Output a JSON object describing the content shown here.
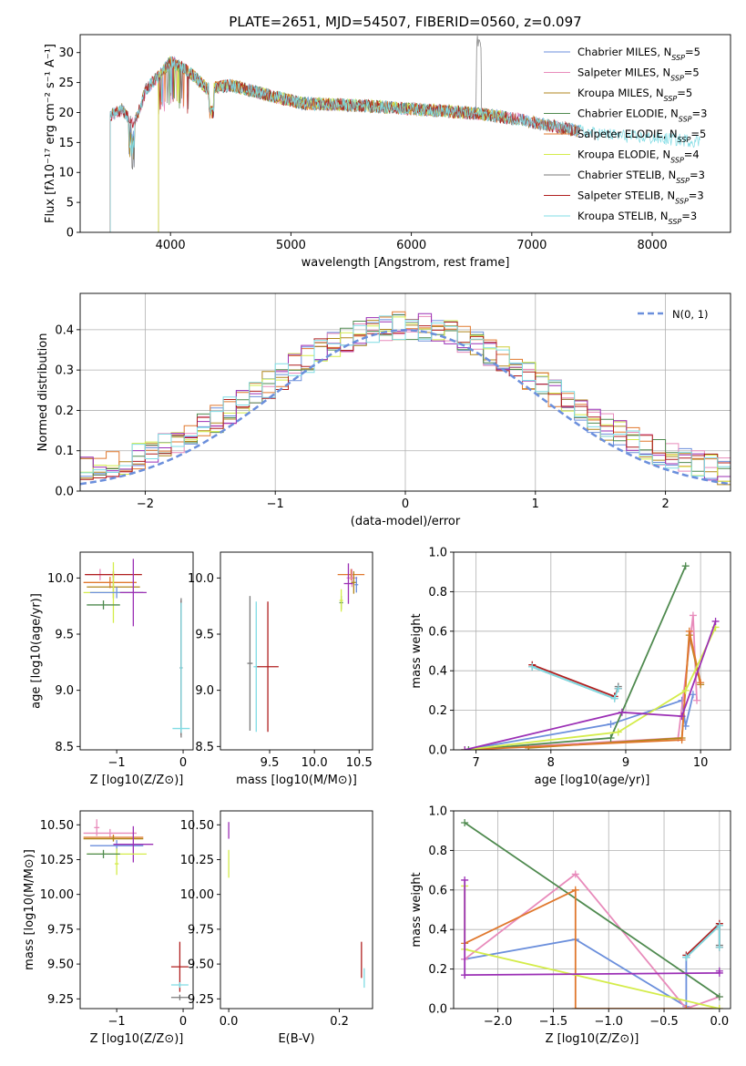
{
  "chart_data": [
    {
      "type": "line",
      "title": "PLATE=2651, MJD=54507, FIBERID=0560, z=0.097",
      "xlabel": "wavelength [Angstrom, rest frame]",
      "ylabel": "Flux [fλ10⁻¹⁷ erg cm⁻² s⁻¹ A⁻¹]",
      "xlim": [
        3250,
        8650
      ],
      "ylim": [
        0,
        33
      ],
      "xticks": [
        4000,
        5000,
        6000,
        7000,
        8000
      ],
      "yticks": [
        0,
        5,
        10,
        15,
        20,
        25,
        30
      ],
      "legend": "top-right",
      "shape_x": [
        3500,
        3600,
        3700,
        3800,
        3900,
        4000,
        4100,
        4200,
        4300,
        4500,
        4700,
        4900,
        5100,
        5400,
        5700,
        6000,
        6300,
        6600,
        6900,
        7200,
        7500,
        7800,
        8100,
        8400
      ],
      "shape_y": [
        19.5,
        20.5,
        18,
        24,
        26,
        28.5,
        27.5,
        26,
        24,
        24.5,
        23.5,
        22.5,
        21.5,
        21.3,
        21,
        20.6,
        20.2,
        19.7,
        18.8,
        17.6,
        16.6,
        16,
        15.6,
        15.2
      ],
      "series": [
        {
          "name": "Chabrier MILES, N_SSP=5",
          "color": "#6b8fdc",
          "range": [
            3500,
            7400
          ]
        },
        {
          "name": "Salpeter MILES, N_SSP=5",
          "color": "#e88bbb",
          "range": [
            3500,
            7400
          ]
        },
        {
          "name": "Kroupa MILES, N_SSP=5",
          "color": "#b0861c",
          "range": [
            3500,
            7400
          ]
        },
        {
          "name": "Chabrier ELODIE, N_SSP=3",
          "color": "#4f8a4f",
          "range": [
            3900,
            6800
          ]
        },
        {
          "name": "Salpeter ELODIE, N_SSP=5",
          "color": "#e0782d",
          "range": [
            3900,
            6800
          ]
        },
        {
          "name": "Kroupa ELODIE, N_SSP=4",
          "color": "#d4ec4a",
          "range": [
            3900,
            6800
          ]
        },
        {
          "name": "Chabrier STELIB, N_SSP=3",
          "color": "#7a7a7a",
          "range": [
            3500,
            7400
          ]
        },
        {
          "name": "Salpeter STELIB, N_SSP=3",
          "color": "#b01f1f",
          "range": [
            3500,
            7400
          ]
        },
        {
          "name": "Kroupa STELIB, N_SSP=3",
          "color": "#7fdce4",
          "range": [
            3500,
            8400
          ]
        }
      ]
    },
    {
      "type": "histogram",
      "xlabel": "(data-model)/error",
      "ylabel": "Normed distribution",
      "xlim": [
        -2.5,
        2.5
      ],
      "ylim": [
        0,
        0.49
      ],
      "xticks": [
        -2,
        -1,
        0,
        1,
        2
      ],
      "yticks": [
        0.0,
        0.1,
        0.2,
        0.3,
        0.4
      ],
      "grid": true,
      "legend": "top-right",
      "gaussian_label": "N(0, 1)",
      "gaussian_color": "#6b8fdc",
      "bin_width": 0.1
    },
    {
      "type": "errorbar",
      "xlabel": "Z [log10(Z/Z⊙)]",
      "ylabel": "age  [log10(age/yr)]",
      "xlim": [
        -1.55,
        0.15
      ],
      "ylim": [
        8.47,
        10.23
      ],
      "xticks": [
        -1,
        0
      ],
      "yticks": [
        8.5,
        9.0,
        9.5,
        10.0
      ],
      "points": [
        {
          "x": -1.25,
          "y": 10.03,
          "xerr": 0.22,
          "yerr": 0.05,
          "color": "#e88bbb"
        },
        {
          "x": -1.05,
          "y": 10.03,
          "xerr": 0.43,
          "yerr": 0.03,
          "color": "#b01f1f"
        },
        {
          "x": -1.1,
          "y": 9.96,
          "xerr": 0.4,
          "yerr": 0.05,
          "color": "#e0782d"
        },
        {
          "x": -1.05,
          "y": 9.92,
          "xerr": 0.4,
          "yerr": 0.1,
          "color": "#b0861c"
        },
        {
          "x": -1.05,
          "y": 9.87,
          "xerr": 0.45,
          "yerr": 0.27,
          "color": "#d4ec4a"
        },
        {
          "x": -1.0,
          "y": 9.87,
          "xerr": 0.4,
          "yerr": 0.05,
          "color": "#6b8fdc"
        },
        {
          "x": -0.75,
          "y": 9.87,
          "xerr": 0.2,
          "yerr": 0.3,
          "color": "#9b2fb5"
        },
        {
          "x": -1.2,
          "y": 9.76,
          "xerr": 0.25,
          "yerr": 0.04,
          "color": "#4f8a4f"
        },
        {
          "x": -0.03,
          "y": 9.2,
          "xerr": 0.02,
          "yerr": 0.6,
          "color": "#b01f1f"
        },
        {
          "x": -0.03,
          "y": 9.2,
          "xerr": 0.02,
          "yerr": 0.62,
          "color": "#7a7a7a"
        },
        {
          "x": -0.03,
          "y": 9.2,
          "xerr": 0.02,
          "yerr": 0.58,
          "color": "#7fdce4"
        },
        {
          "x": -0.03,
          "y": 8.66,
          "xerr": 0.13,
          "yerr": 0.02,
          "color": "#7fdce4"
        }
      ]
    },
    {
      "type": "errorbar",
      "xlabel": "mass [log10(M/M⊙)]",
      "ylabel": "",
      "xlim": [
        8.95,
        10.65
      ],
      "ylim": [
        8.47,
        10.23
      ],
      "xticks": [
        9.5,
        10.0,
        10.5
      ],
      "yticks": [
        8.5,
        9.0,
        9.5,
        10.0
      ],
      "points": [
        {
          "x": 10.41,
          "y": 10.03,
          "xerr": 0.15,
          "yerr": 0.05,
          "color": "#e0782d"
        },
        {
          "x": 10.42,
          "y": 10.0,
          "xerr": 0.06,
          "yerr": 0.08,
          "color": "#e88bbb"
        },
        {
          "x": 10.44,
          "y": 9.96,
          "xerr": 0.03,
          "yerr": 0.1,
          "color": "#b0861c"
        },
        {
          "x": 10.38,
          "y": 9.95,
          "xerr": 0.05,
          "yerr": 0.18,
          "color": "#9b2fb5"
        },
        {
          "x": 10.47,
          "y": 9.94,
          "xerr": 0.02,
          "yerr": 0.07,
          "color": "#6b8fdc"
        },
        {
          "x": 10.3,
          "y": 9.78,
          "xerr": 0.02,
          "yerr": 0.06,
          "color": "#4f8a4f"
        },
        {
          "x": 10.3,
          "y": 9.8,
          "xerr": 0.02,
          "yerr": 0.1,
          "color": "#d4ec4a"
        },
        {
          "x": 9.28,
          "y": 9.24,
          "xerr": 0.03,
          "yerr": 0.6,
          "color": "#7a7a7a"
        },
        {
          "x": 9.35,
          "y": 9.21,
          "xerr": 0.03,
          "yerr": 0.58,
          "color": "#7fdce4"
        },
        {
          "x": 9.48,
          "y": 9.21,
          "xerr": 0.12,
          "yerr": 0.58,
          "color": "#b01f1f"
        }
      ]
    },
    {
      "type": "line",
      "xlabel": "age  [log10(age/yr)]",
      "ylabel": "mass weight",
      "xlim": [
        6.7,
        10.4
      ],
      "ylim": [
        0,
        1.0
      ],
      "xticks": [
        7,
        8,
        9,
        10
      ],
      "yticks": [
        0.0,
        0.2,
        0.4,
        0.6,
        0.8,
        1.0
      ],
      "grid": true,
      "series": [
        {
          "color": "#6b8fdc",
          "x": [
            6.85,
            8.8,
            9.75,
            9.8,
            9.9
          ],
          "y": [
            0.0,
            0.13,
            0.25,
            0.12,
            0.28
          ]
        },
        {
          "color": "#e88bbb",
          "x": [
            6.85,
            9.7,
            9.9,
            9.95
          ],
          "y": [
            0.0,
            0.06,
            0.68,
            0.25
          ]
        },
        {
          "color": "#b0861c",
          "x": [
            7.7,
            9.75,
            9.85,
            10.0
          ],
          "y": [
            0.01,
            0.06,
            0.58,
            0.33
          ]
        },
        {
          "color": "#4f8a4f",
          "x": [
            6.9,
            8.8,
            9.8
          ],
          "y": [
            0.0,
            0.06,
            0.93
          ]
        },
        {
          "color": "#e0782d",
          "x": [
            6.85,
            9.75,
            9.85,
            10.0
          ],
          "y": [
            0.0,
            0.05,
            0.6,
            0.34
          ]
        },
        {
          "color": "#d4ec4a",
          "x": [
            6.85,
            8.9,
            9.8,
            10.2
          ],
          "y": [
            0.0,
            0.09,
            0.3,
            0.62
          ]
        },
        {
          "color": "#9b2fb5",
          "x": [
            6.85,
            8.95,
            9.75,
            10.2
          ],
          "y": [
            0.0,
            0.19,
            0.17,
            0.65
          ]
        },
        {
          "color": "#7a7a7a",
          "x": [
            7.75,
            8.85,
            8.9
          ],
          "y": [
            0.42,
            0.26,
            0.32
          ]
        },
        {
          "color": "#b01f1f",
          "x": [
            7.75,
            8.85,
            8.9
          ],
          "y": [
            0.43,
            0.27,
            0.31
          ]
        },
        {
          "color": "#7fdce4",
          "x": [
            7.75,
            8.85,
            8.9
          ],
          "y": [
            0.42,
            0.26,
            0.31
          ]
        }
      ]
    },
    {
      "type": "errorbar",
      "xlabel": "Z [log10(Z/Z⊙)]",
      "ylabel": "mass [log10(M/M⊙)]",
      "xlim": [
        -1.55,
        0.15
      ],
      "ylim": [
        9.18,
        10.6
      ],
      "xticks": [
        -1,
        0
      ],
      "yticks": [
        9.25,
        9.5,
        9.75,
        10.0,
        10.25,
        10.5
      ],
      "points": [
        {
          "x": -1.3,
          "y": 10.48,
          "xerr": 0.04,
          "yerr": 0.06,
          "color": "#e88bbb"
        },
        {
          "x": -1.1,
          "y": 10.44,
          "xerr": 0.4,
          "yerr": 0.03,
          "color": "#e88bbb"
        },
        {
          "x": -1.05,
          "y": 10.41,
          "xerr": 0.45,
          "yerr": 0.02,
          "color": "#e0782d"
        },
        {
          "x": -1.05,
          "y": 10.4,
          "xerr": 0.45,
          "yerr": 0.02,
          "color": "#b0861c"
        },
        {
          "x": -1.0,
          "y": 10.35,
          "xerr": 0.4,
          "yerr": 0.04,
          "color": "#6b8fdc"
        },
        {
          "x": -0.75,
          "y": 10.36,
          "xerr": 0.3,
          "yerr": 0.13,
          "color": "#9b2fb5"
        },
        {
          "x": -1.0,
          "y": 10.29,
          "xerr": 0.45,
          "yerr": 0.04,
          "color": "#d4ec4a"
        },
        {
          "x": -1.0,
          "y": 10.22,
          "xerr": 0.03,
          "yerr": 0.08,
          "color": "#d4ec4a"
        },
        {
          "x": -1.2,
          "y": 10.29,
          "xerr": 0.25,
          "yerr": 0.03,
          "color": "#4f8a4f"
        },
        {
          "x": -0.05,
          "y": 9.48,
          "xerr": 0.13,
          "yerr": 0.18,
          "color": "#b01f1f"
        },
        {
          "x": -0.05,
          "y": 9.35,
          "xerr": 0.13,
          "yerr": 0.02,
          "color": "#7fdce4"
        },
        {
          "x": -0.05,
          "y": 9.26,
          "xerr": 0.13,
          "yerr": 0.02,
          "color": "#7a7a7a"
        }
      ]
    },
    {
      "type": "errorbar",
      "xlabel": "E(B-V)",
      "ylabel": "",
      "xlim": [
        -0.015,
        0.26
      ],
      "ylim": [
        9.18,
        10.6
      ],
      "xticks": [
        0.0,
        0.2
      ],
      "yticks": [
        9.25,
        9.5,
        9.75,
        10.0,
        10.25,
        10.5
      ],
      "points": [
        {
          "x": 0.0,
          "y": 10.46,
          "xerr": 0.0,
          "yerr": 0.06,
          "color": "#9b2fb5"
        },
        {
          "x": 0.0,
          "y": 10.22,
          "xerr": 0.0,
          "yerr": 0.1,
          "color": "#d4ec4a"
        },
        {
          "x": 0.24,
          "y": 9.53,
          "xerr": 0.0,
          "yerr": 0.13,
          "color": "#b01f1f"
        },
        {
          "x": 0.245,
          "y": 9.4,
          "xerr": 0.0,
          "yerr": 0.07,
          "color": "#7fdce4"
        }
      ]
    },
    {
      "type": "line",
      "xlabel": "Z [log10(Z/Z⊙)]",
      "ylabel": "mass weight",
      "xlim": [
        -2.4,
        0.1
      ],
      "ylim": [
        0,
        1.0
      ],
      "xticks": [
        -2.0,
        -1.5,
        -1.0,
        -0.5,
        0.0
      ],
      "yticks": [
        0.0,
        0.2,
        0.4,
        0.6,
        0.8,
        1.0
      ],
      "grid": true,
      "series": [
        {
          "color": "#6b8fdc",
          "x": [
            -2.3,
            -1.3,
            -0.3,
            -0.3
          ],
          "y": [
            0.25,
            0.35,
            0.01,
            0.26
          ]
        },
        {
          "color": "#e88bbb",
          "x": [
            -2.3,
            -1.3,
            -0.3,
            0.0
          ],
          "y": [
            0.25,
            0.68,
            0.0,
            0.06
          ]
        },
        {
          "color": "#4f8a4f",
          "x": [
            -2.3,
            0.0
          ],
          "y": [
            0.94,
            0.06
          ]
        },
        {
          "color": "#e0782d",
          "x": [
            -2.3,
            -1.3,
            -1.3,
            -0.3,
            0.0
          ],
          "y": [
            0.33,
            0.6,
            0.0,
            0.0,
            0.0
          ]
        },
        {
          "color": "#d4ec4a",
          "x": [
            -2.3,
            -2.3,
            0.0
          ],
          "y": [
            0.62,
            0.3,
            0.0
          ]
        },
        {
          "color": "#9b2fb5",
          "x": [
            -2.3,
            -2.3,
            -2.3,
            0.0,
            0.0
          ],
          "y": [
            0.65,
            0.17,
            0.17,
            0.18,
            0.19
          ]
        },
        {
          "color": "#7a7a7a",
          "x": [
            -0.3,
            0.0,
            0.0
          ],
          "y": [
            0.26,
            0.42,
            0.32
          ]
        },
        {
          "color": "#b01f1f",
          "x": [
            -0.3,
            0.0,
            0.0
          ],
          "y": [
            0.27,
            0.43,
            0.31
          ]
        },
        {
          "color": "#7fdce4",
          "x": [
            -0.3,
            0.0,
            0.0
          ],
          "y": [
            0.26,
            0.42,
            0.31
          ]
        }
      ]
    }
  ]
}
